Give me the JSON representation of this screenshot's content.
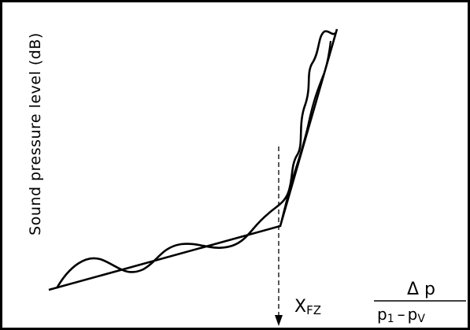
{
  "diagram": {
    "ylabel": "Sound pressure level (dB)",
    "marker_label": "X",
    "marker_subscript": "FZ",
    "ratio": {
      "numerator": "Δ p",
      "denominator_base_1": "p",
      "denominator_sub_1": "1",
      "minus": "–",
      "denominator_base_2": "p",
      "denominator_sub_2": "V"
    }
  },
  "chart_data": {
    "type": "line",
    "title": "",
    "xlabel": "Δp / (p1 - pv)",
    "ylabel": "Sound pressure level (dB)",
    "series": [
      {
        "name": "",
        "kind": "idealized two-segment line"
      },
      {
        "name": "",
        "kind": "measured oscillating curve"
      }
    ],
    "grid": false,
    "legend": "none"
  }
}
